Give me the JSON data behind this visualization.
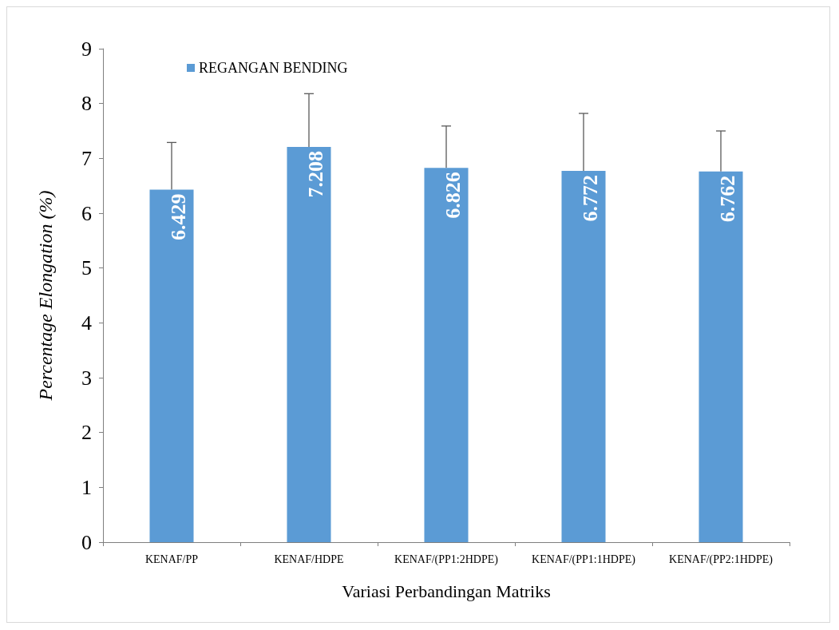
{
  "chart_data": {
    "type": "bar",
    "xlabel": "Variasi Perbandingan Matriks",
    "ylabel": "Percentage Elongation (%)",
    "categories": [
      "KENAF/PP",
      "KENAF/HDPE",
      "KENAF/(PP1:2HDPE)",
      "KENAF/(PP1:1HDPE)",
      "KENAF/(PP2:1HDPE)"
    ],
    "series": [
      {
        "name": "REGANGAN BENDING",
        "color": "#5b9bd5",
        "values": [
          6.429,
          7.208,
          6.826,
          6.772,
          6.762
        ],
        "errors": [
          [
            6.429,
            7.29
          ],
          [
            7.208,
            8.18
          ],
          [
            6.826,
            7.59
          ],
          [
            6.772,
            7.82
          ],
          [
            6.762,
            7.5
          ]
        ]
      }
    ],
    "ylim": [
      0,
      9
    ],
    "yticks": [
      0,
      1,
      2,
      3,
      4,
      5,
      6,
      7,
      8,
      9
    ],
    "data_labels": true,
    "grid": false,
    "legend": "top left"
  }
}
